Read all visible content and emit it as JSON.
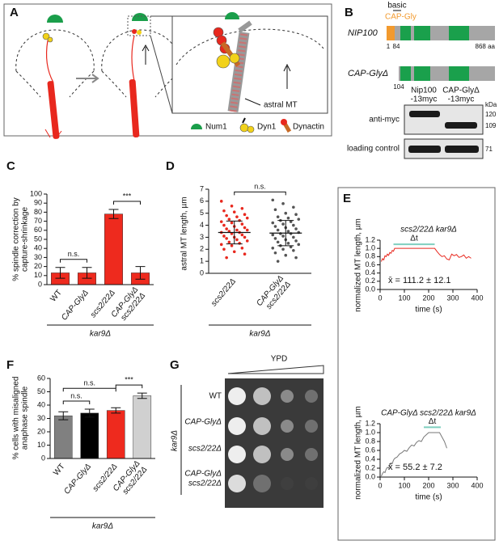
{
  "panel_labels": [
    "A",
    "B",
    "C",
    "D",
    "E",
    "F",
    "G"
  ],
  "panel_a": {
    "annotation": "astral MT",
    "legend": [
      "Num1",
      "Dyn1",
      "Dynactin"
    ]
  },
  "panel_b": {
    "basic": "basic",
    "cap_gly": "CAP-Gly",
    "nip100": "NIP100",
    "nip100_start": 1,
    "nip100_cut": 84,
    "nip100_end": "868 aa",
    "capgly_delta": "CAP-GlyΔ",
    "capgly_start": 104,
    "blot_lanes": [
      [
        "Nip100",
        "-13myc"
      ],
      [
        "CAP-GlyΔ",
        "-13myc"
      ]
    ],
    "kda": "kDa",
    "markers": [
      120,
      109,
      71
    ],
    "rows": [
      "anti-myc",
      "loading control"
    ]
  },
  "panel_g": {
    "medium": "YPD",
    "rows": [
      "WT",
      "CAP-GlyΔ",
      "scs2/22Δ",
      [
        "CAP-GlyΔ",
        "scs2/22Δ"
      ]
    ],
    "group_label": "kar9Δ"
  },
  "chart_data": [
    {
      "type": "bar",
      "ylabel": [
        "% spindle correction by",
        "capture-shrinkage"
      ],
      "categories": [
        "WT",
        "CAP-GlyΔ",
        "scs2/22Δ",
        [
          "CAP-GlyΔ",
          "scs2/22Δ"
        ]
      ],
      "values": [
        13,
        13,
        78,
        13
      ],
      "errors": [
        6,
        6,
        5,
        7
      ],
      "color": "#ee2a1e",
      "ylim": [
        0,
        100
      ],
      "yticks": [
        0,
        10,
        20,
        30,
        40,
        50,
        60,
        70,
        80,
        90,
        100
      ],
      "annotations": [
        "n.s.",
        "***"
      ],
      "group_label": "kar9Δ"
    },
    {
      "type": "dotplot",
      "ylabel": "astral MT length, µm",
      "categories": [
        "scs2/22Δ",
        [
          "CAP-GlyΔ",
          "scs2/22Δ"
        ]
      ],
      "groups": [
        {
          "color": "#e8281e",
          "mean": 3.4,
          "sd": 0.95,
          "values": [
            6.0,
            5.6,
            5.4,
            5.2,
            5.1,
            4.9,
            4.8,
            4.7,
            4.6,
            4.5,
            4.4,
            4.3,
            4.2,
            4.1,
            4.0,
            3.9,
            3.8,
            3.7,
            3.6,
            3.6,
            3.5,
            3.4,
            3.4,
            3.3,
            3.2,
            3.1,
            3.0,
            3.0,
            2.9,
            2.8,
            2.7,
            2.6,
            2.5,
            2.4,
            2.3,
            2.1,
            2.0,
            1.8,
            1.6,
            1.3
          ]
        },
        {
          "color": "#555555",
          "mean": 3.35,
          "sd": 1.05,
          "values": [
            6.1,
            5.8,
            5.5,
            5.3,
            5.0,
            4.9,
            4.7,
            4.6,
            4.5,
            4.4,
            4.3,
            4.2,
            4.1,
            4.0,
            3.9,
            3.8,
            3.7,
            3.6,
            3.5,
            3.4,
            3.3,
            3.3,
            3.2,
            3.1,
            3.0,
            2.9,
            2.8,
            2.7,
            2.6,
            2.5,
            2.4,
            2.3,
            2.2,
            2.1,
            2.0,
            1.9,
            1.7,
            1.5,
            1.3,
            1.0
          ]
        }
      ],
      "ylim": [
        0,
        7
      ],
      "yticks": [
        0,
        1,
        2,
        3,
        4,
        5,
        6,
        7
      ],
      "annotations": [
        "n.s."
      ],
      "group_label": "kar9Δ"
    },
    {
      "type": "line",
      "title": "scs2/22Δ kar9Δ",
      "ylabel": "normalized MT length, µm",
      "xlabel": "time (s)",
      "xlim": [
        0,
        400
      ],
      "xticks": [
        0,
        100,
        200,
        300,
        400
      ],
      "ylim": [
        0,
        1.2
      ],
      "yticks": [
        {
          "value": 0,
          "label": "0.0"
        },
        0.2,
        0.4,
        0.6,
        0.8,
        {
          "value": 1,
          "label": "1.0"
        },
        1.2
      ],
      "series": [
        {
          "color": "#e8281e",
          "x": [
            5,
            10,
            15,
            20,
            25,
            30,
            35,
            40,
            45,
            50,
            55,
            60,
            225,
            235,
            245,
            255,
            265,
            275,
            285,
            295,
            305,
            315,
            325,
            335,
            345,
            355,
            365,
            375
          ],
          "values": [
            0.68,
            0.75,
            0.72,
            0.82,
            0.8,
            0.86,
            0.83,
            0.9,
            0.88,
            0.95,
            0.93,
            1.0,
            1.0,
            0.92,
            0.85,
            0.8,
            0.82,
            0.74,
            0.72,
            0.86,
            0.82,
            0.85,
            0.78,
            0.8,
            0.84,
            0.76,
            0.8,
            0.76
          ]
        }
      ],
      "interval": {
        "label": "Δt",
        "from": 55,
        "to": 225,
        "y": 1.1,
        "color": "#7fcfbf"
      },
      "mean_label": "x̄ = 111.2 ± 12.1"
    },
    {
      "type": "line",
      "title": "CAP-GlyΔ scs2/22Δ kar9Δ",
      "ylabel": "normalized MT length, µm",
      "xlabel": "time (s)",
      "xlim": [
        0,
        400
      ],
      "xticks": [
        0,
        100,
        200,
        300,
        400
      ],
      "ylim": [
        0,
        1.2
      ],
      "yticks": [
        {
          "value": 0,
          "label": "0.0"
        },
        0.2,
        0.4,
        0.6,
        0.8,
        {
          "value": 1,
          "label": "1.0"
        },
        1.2
      ],
      "series": [
        {
          "color": "#777777",
          "x": [
            5,
            10,
            15,
            20,
            25,
            30,
            35,
            40,
            45,
            50,
            55,
            60,
            70,
            80,
            90,
            100,
            110,
            120,
            130,
            140,
            150,
            160,
            170,
            180,
            190,
            200,
            245,
            255,
            265,
            275
          ],
          "values": [
            0.02,
            0.08,
            0.12,
            0.1,
            0.18,
            0.22,
            0.2,
            0.28,
            0.32,
            0.3,
            0.38,
            0.42,
            0.45,
            0.52,
            0.55,
            0.6,
            0.58,
            0.66,
            0.72,
            0.7,
            0.78,
            0.82,
            0.8,
            0.9,
            0.95,
            1.0,
            1.0,
            0.9,
            0.8,
            0.65
          ]
        }
      ],
      "interval": {
        "label": "Δt",
        "from": 180,
        "to": 250,
        "y": 1.12,
        "color": "#7fcfbf"
      },
      "mean_label": "x̄ = 55.2 ± 7.2"
    },
    {
      "type": "bar",
      "ylabel": [
        "% cells with misaligned",
        "anaphase spindle"
      ],
      "categories": [
        "WT",
        "CAP-GlyΔ",
        "scs2/22Δ",
        [
          "CAP-GlyΔ",
          "scs2/22Δ"
        ]
      ],
      "values": [
        32,
        34,
        36,
        47
      ],
      "errors": [
        3,
        3,
        2,
        2
      ],
      "colors": [
        "#808080",
        "#000000",
        "#ee2a1e",
        "#d0d0d0"
      ],
      "ylim": [
        0,
        60
      ],
      "yticks": [
        0,
        10,
        20,
        30,
        40,
        50,
        60
      ],
      "annotations": [
        "n.s.",
        "n.s.",
        "***"
      ],
      "group_label": "kar9Δ"
    }
  ]
}
